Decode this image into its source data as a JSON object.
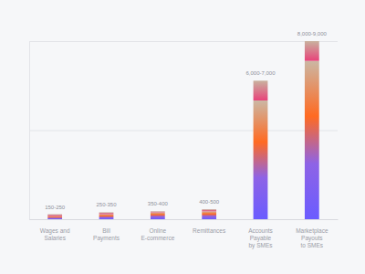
{
  "chart_data": {
    "type": "bar",
    "categories": [
      "Wages and Salaries",
      "Bill Payments",
      "Online E-commerce",
      "Remittances",
      "Accounts Payable by SMEs",
      "Marketplace Payouts to SMEs"
    ],
    "low": [
      150,
      250,
      350,
      400,
      6000,
      8000
    ],
    "values": [
      250,
      350,
      400,
      500,
      7000,
      9000
    ],
    "value_labels": [
      "150-250",
      "250-350",
      "350-400",
      "400-500",
      "6,000-7,000",
      "8,000-9,000"
    ],
    "ylim": [
      0,
      9000
    ],
    "yticks": [
      0,
      4500,
      9000
    ],
    "grid": true,
    "data_labels": true,
    "tick_labels": "x"
  }
}
